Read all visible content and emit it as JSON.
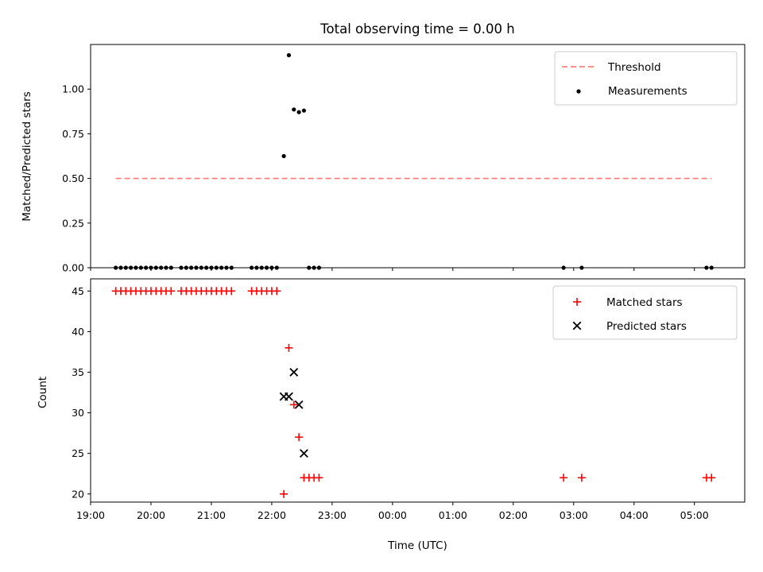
{
  "chart_data": [
    {
      "type": "scatter",
      "title": "Total observing time = 0.00 h",
      "xlabel": "",
      "ylabel": "Matched/Predicted stars",
      "ylim": [
        0.0,
        1.25
      ],
      "yticks": [
        "0.00",
        "0.25",
        "0.50",
        "0.75",
        "1.00"
      ],
      "xlim": [
        "19:00",
        "05:50"
      ],
      "grid": false,
      "legend_position": "top-right",
      "legend": [
        "Threshold",
        "Measurements"
      ],
      "threshold": {
        "name": "Threshold",
        "y": 0.5,
        "x_start": "19:25",
        "x_end": "05:17",
        "color": "#ff7f7f",
        "style": "dashed"
      },
      "series": [
        {
          "name": "Measurements",
          "color": "#000000",
          "marker": "dot",
          "points": [
            [
              "19:25",
              0
            ],
            [
              "19:30",
              0
            ],
            [
              "19:35",
              0
            ],
            [
              "19:40",
              0
            ],
            [
              "19:45",
              0
            ],
            [
              "19:50",
              0
            ],
            [
              "19:55",
              0
            ],
            [
              "20:00",
              0
            ],
            [
              "20:05",
              0
            ],
            [
              "20:10",
              0
            ],
            [
              "20:15",
              0
            ],
            [
              "20:20",
              0
            ],
            [
              "20:30",
              0
            ],
            [
              "20:35",
              0
            ],
            [
              "20:40",
              0
            ],
            [
              "20:45",
              0
            ],
            [
              "20:50",
              0
            ],
            [
              "20:55",
              0
            ],
            [
              "21:00",
              0
            ],
            [
              "21:05",
              0
            ],
            [
              "21:10",
              0
            ],
            [
              "21:15",
              0
            ],
            [
              "21:20",
              0
            ],
            [
              "21:40",
              0
            ],
            [
              "21:45",
              0
            ],
            [
              "21:50",
              0
            ],
            [
              "21:55",
              0
            ],
            [
              "22:00",
              0
            ],
            [
              "22:05",
              0
            ],
            [
              "22:12",
              0.625
            ],
            [
              "22:17",
              1.19
            ],
            [
              "22:22",
              0.886
            ],
            [
              "22:27",
              0.871
            ],
            [
              "22:32",
              0.88
            ],
            [
              "22:37",
              0
            ],
            [
              "22:42",
              0
            ],
            [
              "22:47",
              0
            ],
            [
              "02:50",
              0
            ],
            [
              "03:08",
              0
            ],
            [
              "05:12",
              0
            ],
            [
              "05:17",
              0
            ]
          ]
        }
      ]
    },
    {
      "type": "scatter",
      "title": "",
      "xlabel": "Time (UTC)",
      "ylabel": "Count",
      "ylim": [
        19,
        46.5
      ],
      "yticks": [
        "20",
        "25",
        "30",
        "35",
        "40",
        "45"
      ],
      "xticks": [
        "19:00",
        "20:00",
        "21:00",
        "22:00",
        "23:00",
        "00:00",
        "01:00",
        "02:00",
        "03:00",
        "04:00",
        "05:00"
      ],
      "xlim": [
        "19:00",
        "05:50"
      ],
      "grid": false,
      "legend_position": "top-right",
      "legend": [
        "Matched stars",
        "Predicted stars"
      ],
      "series": [
        {
          "name": "Matched stars",
          "color": "#ff0000",
          "marker": "plus",
          "points": [
            [
              "19:25",
              45
            ],
            [
              "19:30",
              45
            ],
            [
              "19:35",
              45
            ],
            [
              "19:40",
              45
            ],
            [
              "19:45",
              45
            ],
            [
              "19:50",
              45
            ],
            [
              "19:55",
              45
            ],
            [
              "20:00",
              45
            ],
            [
              "20:05",
              45
            ],
            [
              "20:10",
              45
            ],
            [
              "20:15",
              45
            ],
            [
              "20:20",
              45
            ],
            [
              "20:30",
              45
            ],
            [
              "20:35",
              45
            ],
            [
              "20:40",
              45
            ],
            [
              "20:45",
              45
            ],
            [
              "20:50",
              45
            ],
            [
              "20:55",
              45
            ],
            [
              "21:00",
              45
            ],
            [
              "21:05",
              45
            ],
            [
              "21:10",
              45
            ],
            [
              "21:15",
              45
            ],
            [
              "21:20",
              45
            ],
            [
              "21:40",
              45
            ],
            [
              "21:45",
              45
            ],
            [
              "21:50",
              45
            ],
            [
              "21:55",
              45
            ],
            [
              "22:00",
              45
            ],
            [
              "22:05",
              45
            ],
            [
              "22:12",
              20
            ],
            [
              "22:17",
              38
            ],
            [
              "22:22",
              31
            ],
            [
              "22:27",
              27
            ],
            [
              "22:32",
              22
            ],
            [
              "22:37",
              22
            ],
            [
              "22:42",
              22
            ],
            [
              "22:47",
              22
            ],
            [
              "02:50",
              22
            ],
            [
              "03:08",
              22
            ],
            [
              "05:12",
              22
            ],
            [
              "05:17",
              22
            ]
          ]
        },
        {
          "name": "Predicted stars",
          "color": "#000000",
          "marker": "x",
          "points": [
            [
              "22:12",
              32
            ],
            [
              "22:17",
              32
            ],
            [
              "22:22",
              35
            ],
            [
              "22:27",
              31
            ],
            [
              "22:32",
              25
            ]
          ]
        }
      ]
    }
  ]
}
